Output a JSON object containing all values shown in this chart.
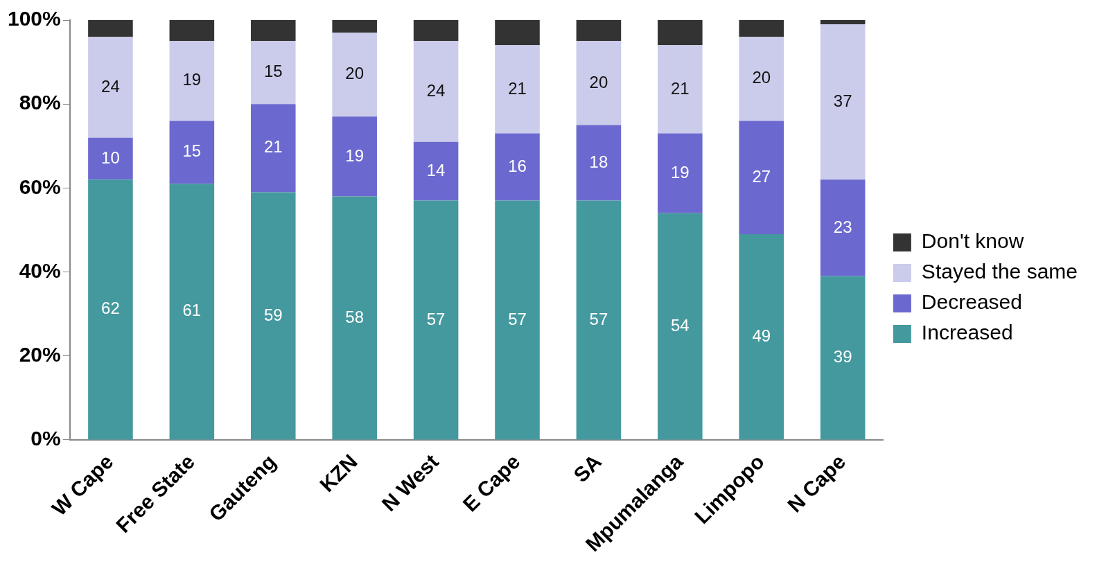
{
  "chart_data": {
    "type": "bar",
    "stacked": true,
    "categories": [
      "W Cape",
      "Free State",
      "Gauteng",
      "KZN",
      "N West",
      "E Cape",
      "SA",
      "Mpumalanga",
      "Limpopo",
      "N Cape"
    ],
    "ylim": [
      0,
      100
    ],
    "yticks": [
      {
        "value": 0,
        "label": "0%"
      },
      {
        "value": 20,
        "label": "20%"
      },
      {
        "value": 40,
        "label": "40%"
      },
      {
        "value": 60,
        "label": "60%"
      },
      {
        "value": 80,
        "label": "80%"
      },
      {
        "value": 100,
        "label": "100%"
      }
    ],
    "grid": false,
    "legend": "right",
    "series": [
      {
        "name": "Increased",
        "color": "#44999e",
        "values": [
          62,
          61,
          59,
          58,
          57,
          57,
          57,
          54,
          49,
          39
        ],
        "value_labels": [
          "62",
          "61",
          "59",
          "58",
          "57",
          "57",
          "57",
          "54",
          "49",
          "39"
        ]
      },
      {
        "name": "Decreased",
        "color": "#6b69cf",
        "values": [
          10,
          15,
          21,
          19,
          14,
          16,
          18,
          19,
          27,
          23
        ],
        "value_labels": [
          "10",
          "15",
          "21",
          "19",
          "14",
          "16",
          "18",
          "19",
          "27",
          "23"
        ]
      },
      {
        "name": "Stayed the same",
        "color": "#cbcbeb",
        "values": [
          24,
          19,
          15,
          20,
          24,
          21,
          20,
          21,
          20,
          37
        ],
        "value_labels": [
          "24",
          "19",
          "15",
          "20",
          "24",
          "21",
          "20",
          "21",
          "20",
          "37"
        ]
      },
      {
        "name": "Don't know",
        "color": "#333333",
        "values": [
          4,
          5,
          5,
          3,
          5,
          6,
          5,
          6,
          4,
          1
        ]
      }
    ]
  }
}
